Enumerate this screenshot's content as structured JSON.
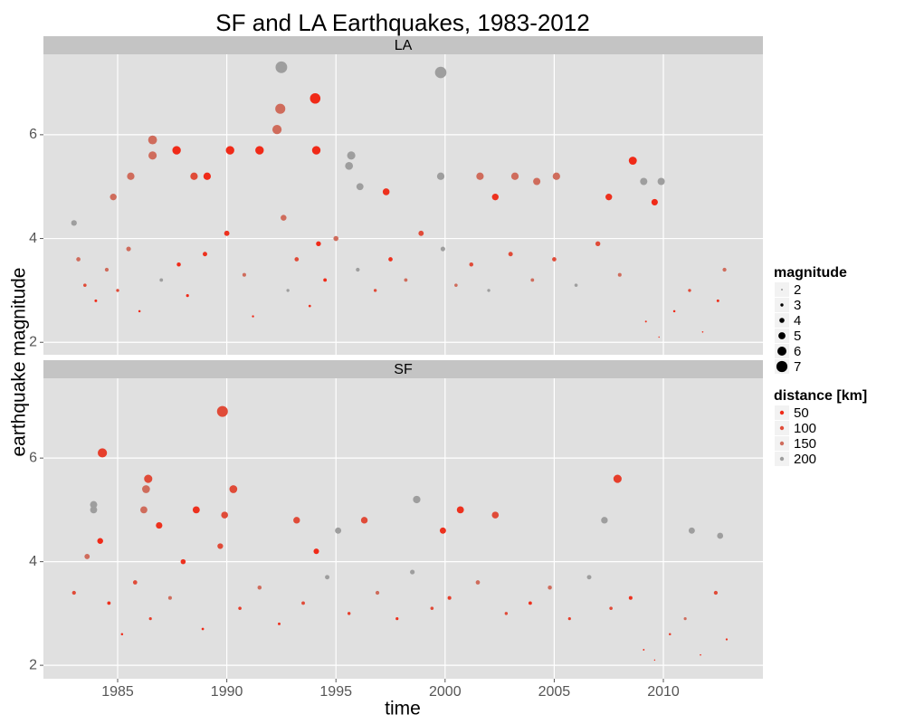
{
  "title": "SF and LA Earthquakes, 1983-2012",
  "x_label": "time",
  "y_label": "earthquake magnitude",
  "legends": [
    {
      "title": "magnitude",
      "values": [
        2,
        3,
        4,
        5,
        6,
        7
      ]
    },
    {
      "title": "distance [km]",
      "values": [
        50,
        100,
        150,
        200
      ],
      "colors": [
        "#f02a18",
        "#e04b38",
        "#cf6c5c",
        "#9e9e9e"
      ]
    }
  ],
  "chart_data": [
    {
      "type": "scatter",
      "panel": "LA",
      "xlim": [
        1981.6,
        2014.56
      ],
      "xticks": [
        1985,
        1990,
        1995,
        2000,
        2005,
        2010
      ],
      "ylim": [
        1.76,
        7.55
      ],
      "yticks": [
        2,
        4,
        6
      ],
      "grid": true,
      "x": [
        1992.5,
        1999.8,
        1994.05,
        1992.45,
        1992.3,
        1986.6,
        1986.6,
        1987.7,
        1990.15,
        1991.5,
        1994.1,
        2008.6,
        1995.7,
        1995.6,
        1985.6,
        1988.5,
        1989.1,
        1999.8,
        2001.6,
        2003.2,
        2005.1,
        2009.1,
        2009.9,
        1996.1,
        1997.3,
        2004.2,
        1984.8,
        2007.5,
        2002.3,
        2009.6,
        1983.0,
        1983.2,
        1983.5,
        1984.0,
        1984.5,
        1985.0,
        1985.5,
        1986.0,
        1987.0,
        1987.8,
        1988.2,
        1989.0,
        1990.0,
        1990.8,
        1991.2,
        1992.6,
        1992.8,
        1993.2,
        1993.8,
        1994.2,
        1994.5,
        1995.0,
        1996.0,
        1996.8,
        1997.5,
        1998.2,
        1998.9,
        1999.9,
        2000.5,
        2001.2,
        2002.0,
        2003.0,
        2004.0,
        2005.0,
        2006.0,
        2007.0,
        2008.0,
        2009.2,
        2009.8,
        2010.5,
        2011.2,
        2011.8,
        2012.5,
        2012.8
      ],
      "values": [
        7.3,
        7.2,
        6.7,
        6.5,
        6.1,
        5.9,
        5.6,
        5.7,
        5.7,
        5.7,
        5.7,
        5.5,
        5.6,
        5.4,
        5.2,
        5.2,
        5.2,
        5.2,
        5.2,
        5.2,
        5.2,
        5.1,
        5.1,
        5.0,
        4.9,
        5.1,
        4.8,
        4.8,
        4.8,
        4.7,
        4.3,
        3.6,
        3.1,
        2.8,
        3.4,
        3.0,
        3.8,
        2.6,
        3.2,
        3.5,
        2.9,
        3.7,
        4.1,
        3.3,
        2.5,
        4.4,
        3.0,
        3.6,
        2.7,
        3.9,
        3.2,
        4.0,
        3.4,
        3.0,
        3.6,
        3.2,
        4.1,
        3.8,
        3.1,
        3.5,
        3.0,
        3.7,
        3.2,
        3.6,
        3.1,
        3.9,
        3.3,
        2.4,
        2.1,
        2.6,
        3.0,
        2.2,
        2.8,
        3.4
      ],
      "distance": [
        200,
        200,
        30,
        150,
        150,
        150,
        150,
        30,
        40,
        40,
        40,
        40,
        200,
        200,
        150,
        100,
        50,
        200,
        150,
        150,
        150,
        200,
        200,
        200,
        60,
        150,
        150,
        60,
        60,
        40,
        200,
        150,
        100,
        40,
        150,
        100,
        150,
        40,
        200,
        30,
        50,
        60,
        60,
        150,
        40,
        150,
        200,
        100,
        60,
        40,
        50,
        150,
        200,
        100,
        60,
        150,
        100,
        200,
        150,
        100,
        200,
        100,
        150,
        100,
        200,
        100,
        150,
        60,
        40,
        50,
        100,
        40,
        60,
        150
      ]
    },
    {
      "type": "scatter",
      "panel": "SF",
      "xlim": [
        1981.6,
        2014.56
      ],
      "xticks": [
        1985,
        1990,
        1995,
        2000,
        2005,
        2010
      ],
      "ylim": [
        1.74,
        7.54
      ],
      "yticks": [
        2,
        4,
        6
      ],
      "grid": true,
      "x": [
        1989.8,
        1984.3,
        1986.4,
        2007.9,
        1986.3,
        1990.3,
        1983.9,
        1983.9,
        1998.7,
        2000.7,
        2002.3,
        1986.2,
        1988.6,
        1989.9,
        1986.9,
        1993.2,
        1996.3,
        2007.3,
        2011.3,
        2012.6,
        1999.9,
        1995.1,
        1994.1,
        1984.2,
        1983.0,
        1983.6,
        1984.6,
        1985.2,
        1985.8,
        1986.5,
        1987.4,
        1988.0,
        1988.9,
        1989.7,
        1990.6,
        1991.5,
        1992.4,
        1993.5,
        1994.6,
        1995.6,
        1996.9,
        1997.8,
        1998.5,
        1999.4,
        2000.2,
        2001.5,
        2002.8,
        2003.9,
        2004.8,
        2005.7,
        2006.6,
        2007.6,
        2008.5,
        2009.1,
        2009.6,
        2010.3,
        2011.0,
        2011.7,
        2012.4,
        2012.9
      ],
      "values": [
        6.9,
        6.1,
        5.6,
        5.6,
        5.4,
        5.4,
        5.1,
        5.0,
        5.2,
        5.0,
        4.9,
        5.0,
        5.0,
        4.9,
        4.7,
        4.8,
        4.8,
        4.8,
        4.6,
        4.5,
        4.6,
        4.6,
        4.2,
        4.4,
        3.4,
        4.1,
        3.2,
        2.6,
        3.6,
        2.9,
        3.3,
        4.0,
        2.7,
        4.3,
        3.1,
        3.5,
        2.8,
        3.2,
        3.7,
        3.0,
        3.4,
        2.9,
        3.8,
        3.1,
        3.3,
        3.6,
        3.0,
        3.2,
        3.5,
        2.9,
        3.7,
        3.1,
        3.3,
        2.3,
        2.1,
        2.6,
        2.9,
        2.2,
        3.4,
        2.5
      ],
      "distance": [
        100,
        80,
        100,
        80,
        150,
        100,
        200,
        200,
        200,
        60,
        100,
        150,
        60,
        100,
        60,
        100,
        100,
        200,
        200,
        200,
        60,
        200,
        40,
        50,
        100,
        150,
        60,
        40,
        100,
        80,
        150,
        60,
        40,
        100,
        80,
        150,
        60,
        100,
        200,
        80,
        150,
        60,
        200,
        100,
        80,
        150,
        100,
        60,
        150,
        80,
        200,
        100,
        60,
        40,
        50,
        80,
        150,
        40,
        100,
        60
      ]
    }
  ]
}
